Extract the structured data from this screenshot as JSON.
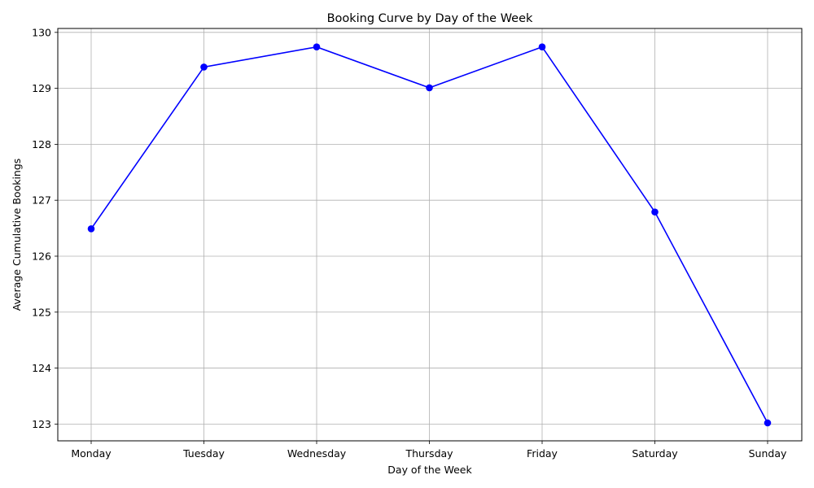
{
  "chart_data": {
    "type": "line",
    "title": "Booking Curve by Day of the Week",
    "xlabel": "Day of the Week",
    "ylabel": "Average Cumulative Bookings",
    "categories": [
      "Monday",
      "Tuesday",
      "Wednesday",
      "Thursday",
      "Friday",
      "Saturday",
      "Sunday"
    ],
    "series": [
      {
        "name": "Average Cumulative Bookings",
        "values": [
          126.49,
          129.38,
          129.74,
          129.01,
          129.74,
          126.79,
          123.02
        ]
      }
    ],
    "ylim": [
      122.7,
      130.07
    ],
    "yticks": [
      123,
      124,
      125,
      126,
      127,
      128,
      129,
      130
    ],
    "grid": true,
    "marker": "circle",
    "line_color": "#0000ff",
    "grid_color": "#b0b0b0"
  }
}
